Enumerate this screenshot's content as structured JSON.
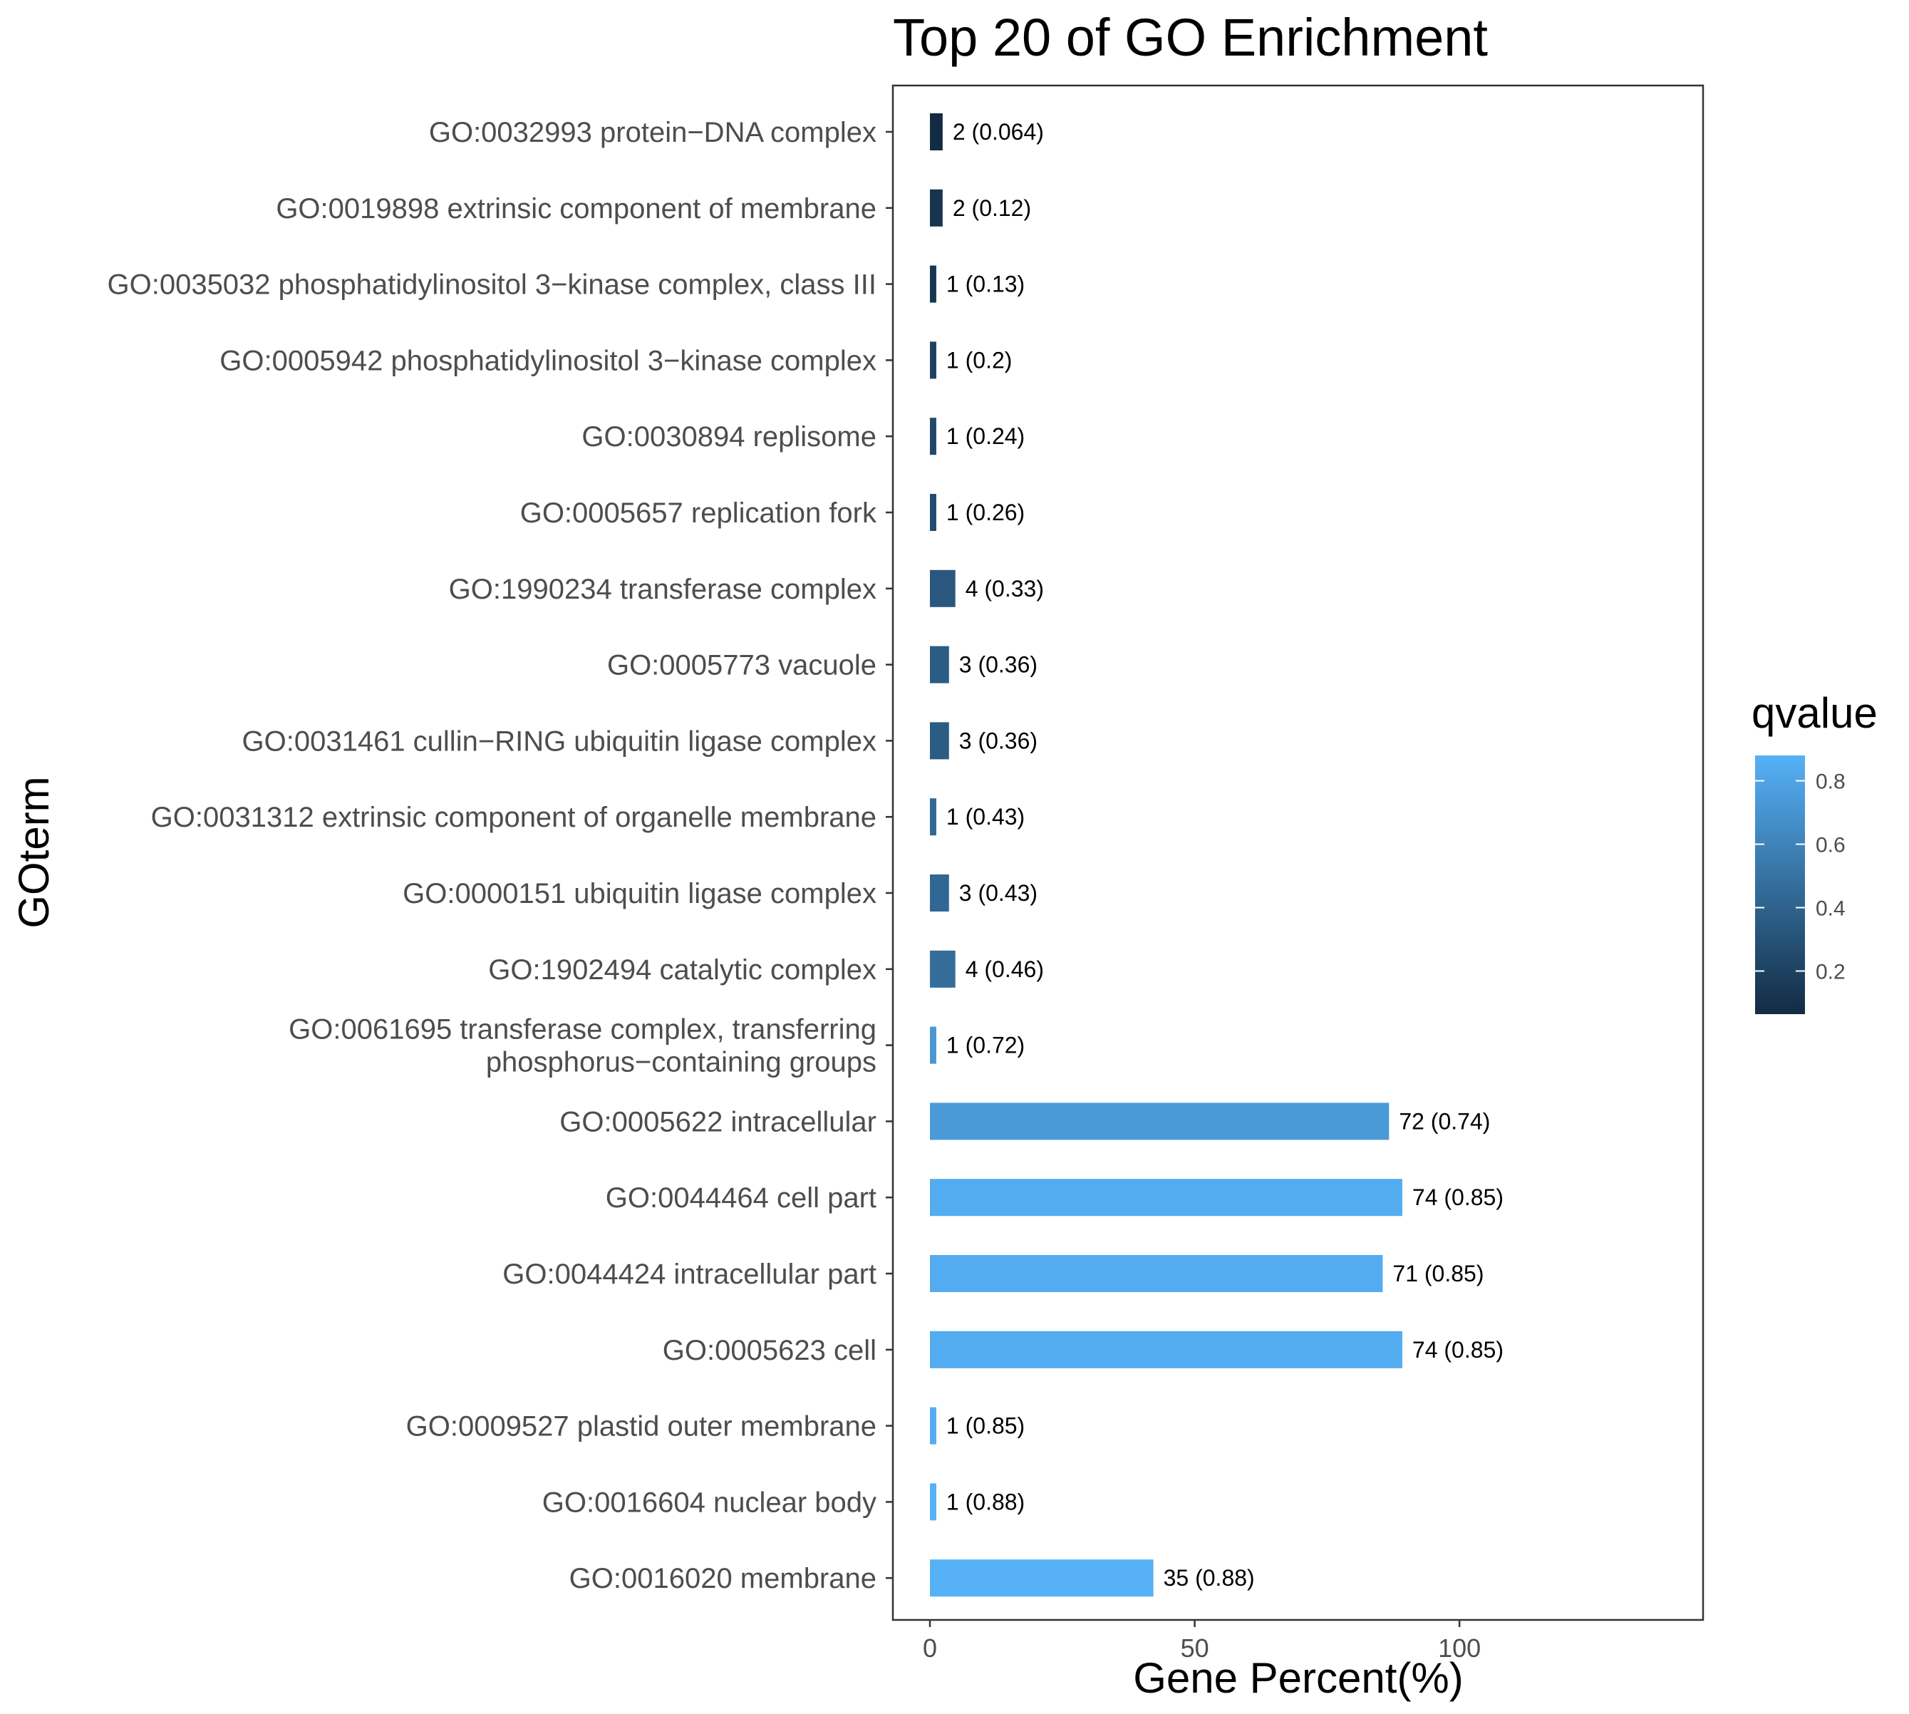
{
  "chart_data": {
    "type": "bar",
    "orientation": "horizontal",
    "title": "Top 20 of GO Enrichment",
    "xlabel": "Gene Percent(%)",
    "ylabel": "GOterm",
    "xlim": [
      -7,
      146
    ],
    "x_ticks": [
      0,
      50,
      100
    ],
    "grid": false,
    "legend": {
      "title": "qvalue",
      "placement": "right",
      "type": "colorbar",
      "range": [
        0.064,
        0.88
      ],
      "ticks": [
        0.2,
        0.4,
        0.6,
        0.8
      ],
      "tick_labels": [
        "0.2",
        "0.4",
        "0.6",
        "0.8"
      ],
      "low_color": "#132b43",
      "high_color": "#56b1f7"
    },
    "categories": [
      "GO:0032993 protein−DNA complex",
      "GO:0019898 extrinsic component of membrane",
      "GO:0035032 phosphatidylinositol 3−kinase complex, class III",
      "GO:0005942 phosphatidylinositol 3−kinase complex",
      "GO:0030894 replisome",
      "GO:0005657 replication fork",
      "GO:1990234 transferase complex",
      "GO:0005773 vacuole",
      "GO:0031461 cullin−RING ubiquitin ligase complex",
      "GO:0031312 extrinsic component of organelle membrane",
      "GO:0000151 ubiquitin ligase complex",
      "GO:1902494 catalytic complex",
      "GO:0061695 transferase complex, transferring\nphosphorus−containing groups",
      "GO:0005622 intracellular",
      "GO:0044464 cell part",
      "GO:0044424 intracellular part",
      "GO:0005623 cell",
      "GO:0009527 plastid outer membrane",
      "GO:0016604 nuclear body",
      "GO:0016020 membrane"
    ],
    "values": [
      2.4,
      2.4,
      1.2,
      1.2,
      1.2,
      1.2,
      4.8,
      3.6,
      3.6,
      1.2,
      3.6,
      4.8,
      1.2,
      86.7,
      89.2,
      85.5,
      89.2,
      1.2,
      1.2,
      42.2
    ],
    "gene_counts": [
      2,
      2,
      1,
      1,
      1,
      1,
      4,
      3,
      3,
      1,
      3,
      4,
      1,
      72,
      74,
      71,
      74,
      1,
      1,
      35
    ],
    "qvalues": [
      0.064,
      0.12,
      0.13,
      0.2,
      0.24,
      0.26,
      0.33,
      0.36,
      0.36,
      0.43,
      0.43,
      0.46,
      0.72,
      0.74,
      0.85,
      0.85,
      0.85,
      0.85,
      0.88,
      0.88
    ],
    "bar_labels": [
      "2 (0.064)",
      "2 (0.12)",
      "1 (0.13)",
      "1 (0.2)",
      "1 (0.24)",
      "1 (0.26)",
      "4 (0.33)",
      "3 (0.36)",
      "3 (0.36)",
      "1 (0.43)",
      "3 (0.43)",
      "4 (0.46)",
      "1 (0.72)",
      "72 (0.74)",
      "74 (0.85)",
      "71 (0.85)",
      "74 (0.85)",
      "1 (0.85)",
      "1 (0.88)",
      "35 (0.88)"
    ]
  }
}
